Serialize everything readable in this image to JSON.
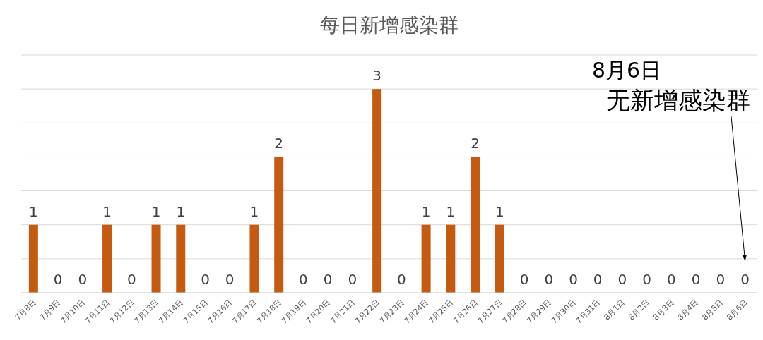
{
  "chart_data": {
    "type": "bar",
    "title": "每日新增感染群",
    "categories": [
      "7月8日",
      "7月9日",
      "7月10日",
      "7月11日",
      "7月12日",
      "7月13日",
      "7月14日",
      "7月15日",
      "7月16日",
      "7月17日",
      "7月18日",
      "7月19日",
      "7月20日",
      "7月21日",
      "7月22日",
      "7月23日",
      "7月24日",
      "7月25日",
      "7月26日",
      "7月27日",
      "7月28日",
      "7月29日",
      "7月30日",
      "7月31日",
      "8月1日",
      "8月2日",
      "8月3日",
      "8月4日",
      "8月5日",
      "8月6日"
    ],
    "values": [
      1,
      0,
      0,
      1,
      0,
      1,
      1,
      0,
      0,
      1,
      2,
      0,
      0,
      0,
      3,
      0,
      1,
      1,
      2,
      1,
      0,
      0,
      0,
      0,
      0,
      0,
      0,
      0,
      0,
      0
    ],
    "color": "#c55a11",
    "data_labels": true,
    "grid": "y",
    "tick_labels": "x",
    "ylim": [
      0,
      3.5
    ],
    "yticks": [
      {
        "value": 0,
        "label": null
      },
      {
        "value": 0.5,
        "label": null
      },
      {
        "value": 1,
        "label": null
      },
      {
        "value": 1.5,
        "label": null
      },
      {
        "value": 2,
        "label": null
      },
      {
        "value": 2.5,
        "label": null
      },
      {
        "value": 3,
        "label": null
      },
      {
        "value": 3.5,
        "label": null
      }
    ],
    "annotations": [
      "8月6日",
      "无新增感染群"
    ]
  }
}
